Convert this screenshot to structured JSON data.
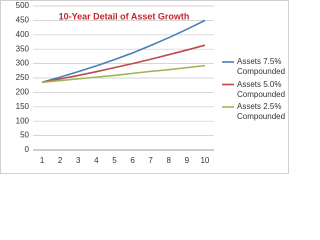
{
  "chart_data": {
    "type": "line",
    "title": "10-Year Detail of Asset Growth",
    "categories": [
      "1",
      "2",
      "3",
      "4",
      "5",
      "6",
      "7",
      "8",
      "9",
      "10"
    ],
    "series": [
      {
        "name": "Assets 7.5% Compounded",
        "color": "#4a7ebb",
        "values": [
          235,
          253,
          272,
          292,
          314,
          337,
          363,
          390,
          419,
          450
        ]
      },
      {
        "name": "Assets 5.0% Compounded",
        "color": "#be4b48",
        "values": [
          235,
          247,
          259,
          272,
          286,
          300,
          315,
          331,
          347,
          364
        ]
      },
      {
        "name": "Assets 2.5% Compounded",
        "color": "#98b954",
        "values": [
          235,
          241,
          247,
          253,
          259,
          266,
          273,
          279,
          286,
          293
        ]
      }
    ],
    "ylim": [
      0,
      500
    ],
    "yticks": [
      0,
      50,
      100,
      150,
      200,
      250,
      300,
      350,
      400,
      450,
      500
    ],
    "grid": true,
    "legend": "right"
  }
}
